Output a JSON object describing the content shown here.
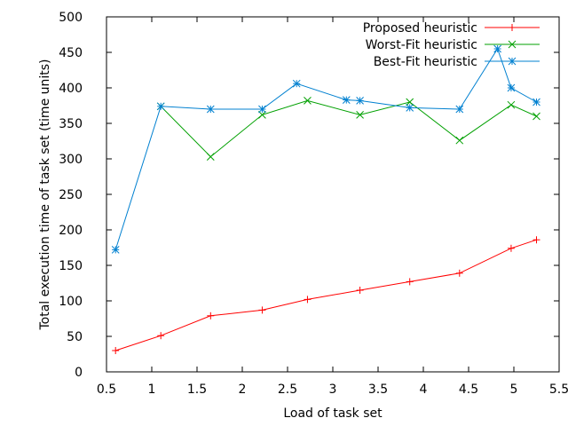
{
  "chart_data": {
    "type": "line",
    "xlabel": "Load of task set",
    "ylabel": "Total execution time of task set (time units)",
    "xlim": [
      0.5,
      5.5
    ],
    "ylim": [
      0,
      500
    ],
    "xticks": [
      "0.5",
      "1",
      "1.5",
      "2",
      "2.5",
      "3",
      "3.5",
      "4",
      "4.5",
      "5",
      "5.5"
    ],
    "yticks": [
      "0",
      "50",
      "100",
      "150",
      "200",
      "250",
      "300",
      "350",
      "400",
      "450",
      "500"
    ],
    "grid": false,
    "legend_position": "top-right",
    "series": [
      {
        "name": "Proposed heuristic",
        "color": "#ff0000",
        "marker": "plus",
        "x": [
          0.6,
          1.1,
          1.65,
          2.22,
          2.72,
          3.3,
          3.85,
          4.4,
          4.97,
          5.25
        ],
        "y": [
          30,
          51,
          79,
          87,
          102,
          115,
          127,
          139,
          174,
          186
        ]
      },
      {
        "name": "Worst-Fit heuristic",
        "color": "#00a000",
        "marker": "cross",
        "x": [
          1.1,
          1.65,
          2.22,
          2.72,
          3.3,
          3.85,
          4.4,
          4.97,
          5.25
        ],
        "y": [
          374,
          303,
          362,
          382,
          362,
          380,
          326,
          376,
          360
        ]
      },
      {
        "name": "Best-Fit heuristic",
        "color": "#0080d0",
        "marker": "star",
        "x": [
          0.6,
          1.1,
          1.65,
          2.22,
          2.6,
          3.15,
          3.3,
          3.85,
          4.4,
          4.82,
          4.97,
          5.25
        ],
        "y": [
          172,
          374,
          370,
          370,
          406,
          383,
          382,
          372,
          370,
          455,
          400,
          380
        ]
      }
    ]
  }
}
